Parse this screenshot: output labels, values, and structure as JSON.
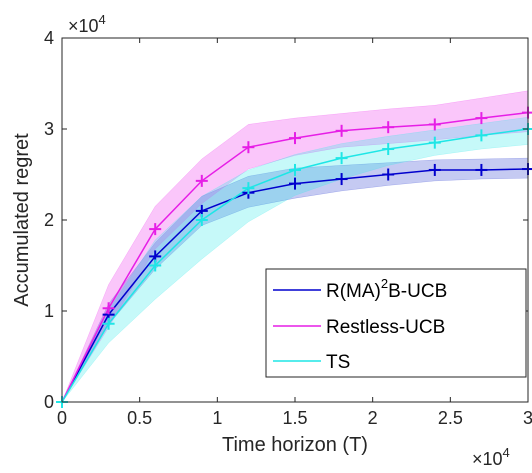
{
  "chart_data": {
    "type": "line",
    "xlabel": "Time horizon (T)",
    "ylabel": "Accumulated regret",
    "x_multiplier": "×10",
    "x_multiplier_exp": "4",
    "y_multiplier": "×10",
    "y_multiplier_exp": "4",
    "xlim": [
      0,
      30000
    ],
    "ylim": [
      0,
      40000
    ],
    "x_ticks": [
      0,
      5000,
      10000,
      15000,
      20000,
      25000,
      30000
    ],
    "x_tick_labels": [
      "0",
      "0.5",
      "1",
      "1.5",
      "2",
      "2.5",
      "3"
    ],
    "y_ticks": [
      0,
      10000,
      20000,
      30000,
      40000
    ],
    "y_tick_labels": [
      "0",
      "1",
      "2",
      "3",
      "4"
    ],
    "x": [
      0,
      3000,
      6000,
      9000,
      12000,
      15000,
      18000,
      21000,
      24000,
      27000,
      30000
    ],
    "grid": false,
    "legend_position": "bottom-right",
    "series": [
      {
        "name": "R(MA)",
        "name_sup": "2",
        "name_suffix": "B-UCB",
        "color": "#0000cd",
        "band_color": "#2f3fd0",
        "values": [
          0,
          9600,
          16000,
          21000,
          23000,
          24000,
          24500,
          25000,
          25500,
          25500,
          25600
        ],
        "lower": [
          0,
          8500,
          14600,
          19400,
          21400,
          22400,
          23200,
          23800,
          24300,
          24500,
          24600
        ],
        "upper": [
          0,
          10800,
          17500,
          22600,
          24800,
          25700,
          26000,
          26300,
          26600,
          26700,
          26800
        ]
      },
      {
        "name": "Restless-UCB",
        "color": "#e61ee6",
        "band_color": "#ee33ee",
        "values": [
          0,
          10300,
          19000,
          24300,
          28000,
          29000,
          29800,
          30200,
          30500,
          31200,
          31800
        ],
        "lower": [
          0,
          8200,
          16800,
          21800,
          25600,
          27100,
          28000,
          28400,
          28800,
          29300,
          29700
        ],
        "upper": [
          0,
          12900,
          21500,
          26700,
          30500,
          31200,
          31700,
          32200,
          32600,
          33400,
          34200
        ]
      },
      {
        "name": "TS",
        "color": "#1ee6e6",
        "band_color": "#33e8e8",
        "values": [
          0,
          8600,
          15000,
          20000,
          23500,
          25500,
          26800,
          27800,
          28500,
          29300,
          30000
        ],
        "lower": [
          0,
          6500,
          11300,
          15700,
          19800,
          22700,
          24500,
          26000,
          27100,
          27800,
          28300
        ],
        "upper": [
          0,
          10100,
          17800,
          22600,
          25500,
          27200,
          28400,
          29200,
          29900,
          30600,
          31300
        ]
      }
    ]
  }
}
